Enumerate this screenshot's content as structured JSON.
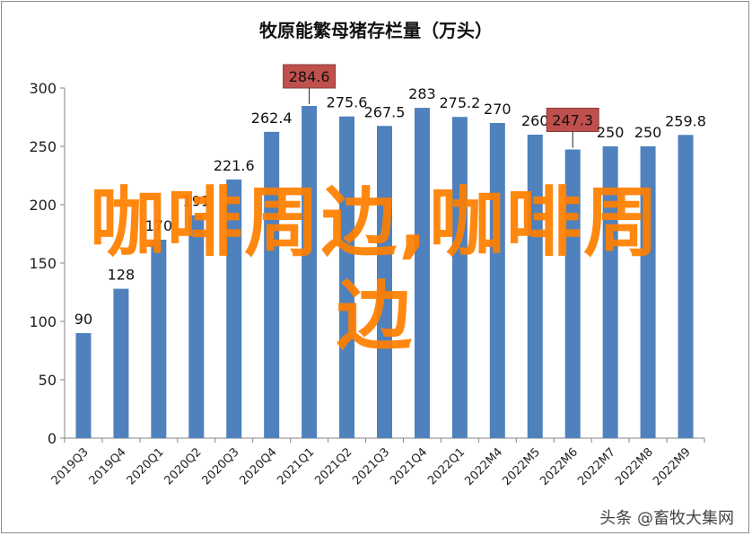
{
  "chart_data": {
    "type": "bar",
    "title": "牧原能繁母猪存栏量（万头）",
    "categories": [
      "2019Q3",
      "2019Q4",
      "2020Q1",
      "2020Q2",
      "2020Q3",
      "2020Q4",
      "2021Q1",
      "2021Q2",
      "2021Q3",
      "2021Q4",
      "2022Q1",
      "2022M4",
      "2022M5",
      "2022M6",
      "2022M7",
      "2022M8",
      "2022M9"
    ],
    "values": [
      90,
      128,
      170,
      191,
      221.6,
      262.4,
      284.6,
      275.6,
      267.5,
      283,
      275.2,
      270,
      260,
      247.3,
      250,
      250,
      259.8
    ],
    "value_labels": [
      "90",
      "128",
      "170",
      "191",
      "221.6",
      "262.4",
      "284.6",
      "275.6",
      "267.5",
      "283",
      "275.2",
      "270",
      "260",
      "247.3",
      "250",
      "250",
      "259.8"
    ],
    "highlighted": [
      "2021Q1",
      "2022M6"
    ],
    "ylim": [
      0,
      300
    ],
    "yticks": [
      0,
      50,
      100,
      150,
      200,
      250,
      300
    ],
    "xlabel": "",
    "ylabel": "",
    "grid": false,
    "legend": "none",
    "colors": {
      "bar": "#4f81bd",
      "highlight_label_bg": "#c0504d"
    }
  },
  "overlay_text": "咖啡周边,咖啡周边",
  "credit": "头条 @畜牧大集网"
}
